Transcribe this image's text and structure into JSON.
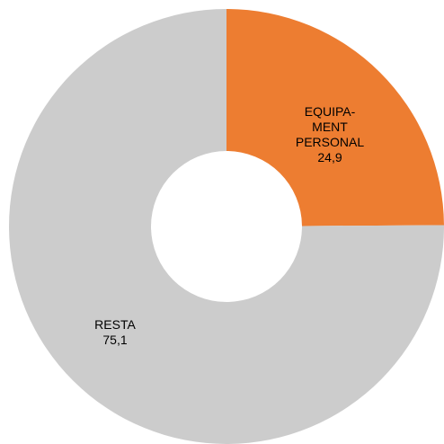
{
  "chart_data": {
    "type": "donut",
    "categories": [
      "EQUIPA-MENT PERSONAL",
      "RESTA"
    ],
    "values": [
      24.9,
      75.1
    ],
    "value_labels": [
      "24,9",
      "75,1"
    ],
    "colors": [
      "#ed7d31",
      "#cccccc"
    ]
  }
}
